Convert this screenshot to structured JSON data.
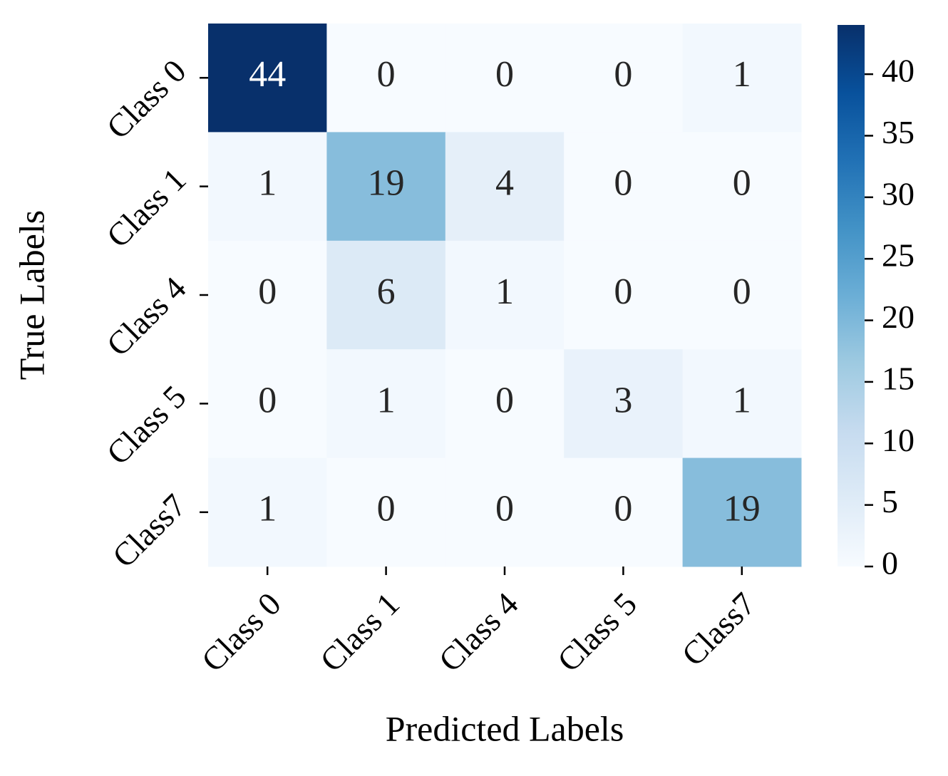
{
  "chart_data": {
    "type": "heatmap",
    "xlabel": "Predicted Labels",
    "ylabel": "True Labels",
    "x_categories": [
      "Class 0",
      "Class 1",
      "Class 4",
      "Class 5",
      "Class7"
    ],
    "y_categories": [
      "Class 0",
      "Class 1",
      "Class 4",
      "Class 5",
      "Class7"
    ],
    "values": [
      [
        44,
        0,
        0,
        0,
        1
      ],
      [
        1,
        19,
        4,
        0,
        0
      ],
      [
        0,
        6,
        1,
        0,
        0
      ],
      [
        0,
        1,
        0,
        3,
        1
      ],
      [
        1,
        0,
        0,
        0,
        19
      ]
    ],
    "colormap": "Blues",
    "zlim": [
      0,
      44
    ],
    "zticks": [
      0,
      5,
      10,
      15,
      20,
      25,
      30,
      35,
      40
    ],
    "colorbar": true
  }
}
